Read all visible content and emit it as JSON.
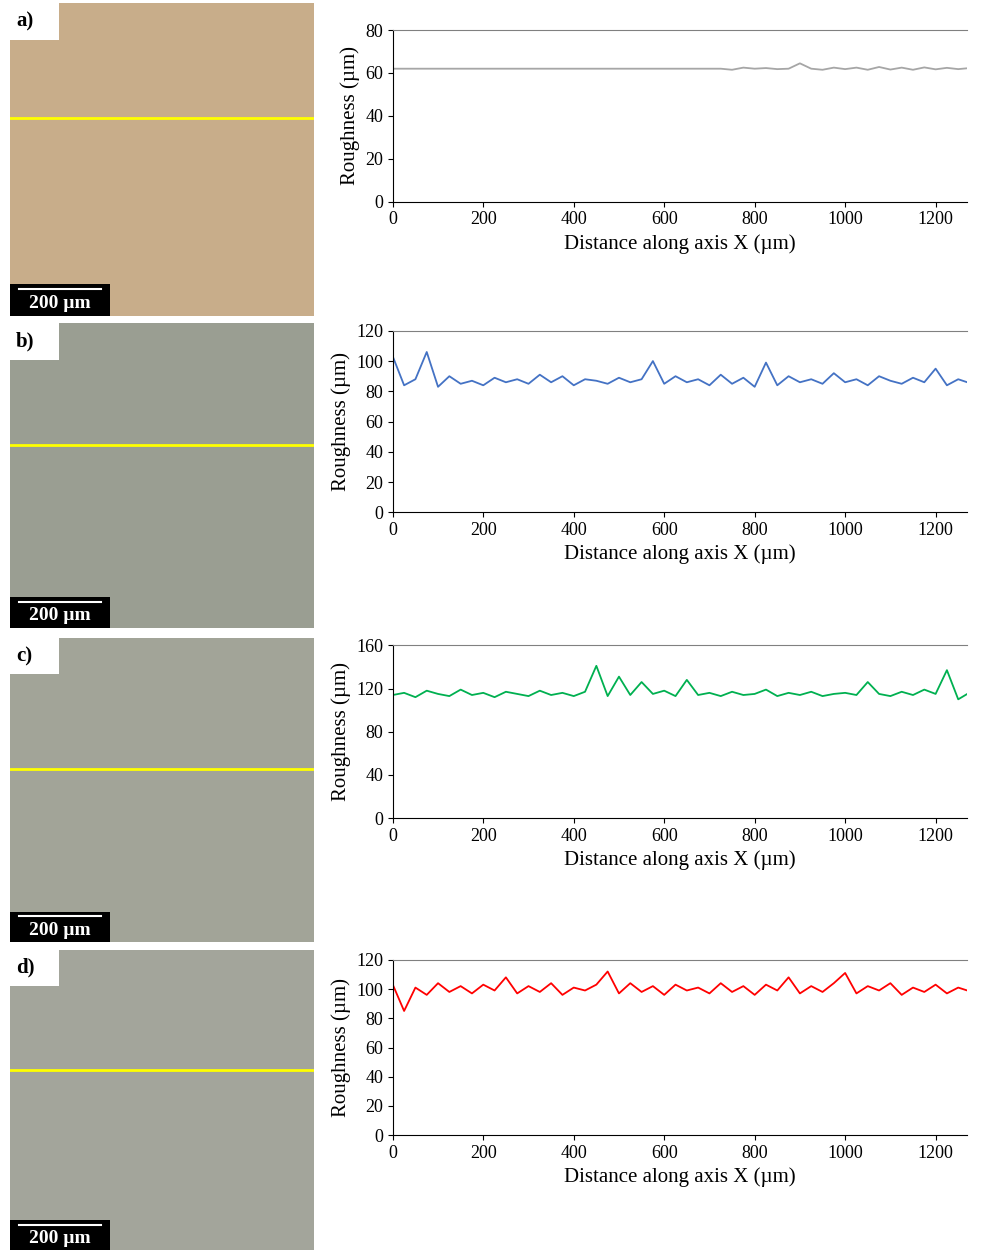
{
  "chart_data": [
    {
      "type": "line",
      "x_label": "Distance along axis X (µm)",
      "y_label": "Roughness (µm)",
      "x": [
        0,
        25,
        50,
        75,
        100,
        125,
        150,
        175,
        200,
        225,
        250,
        275,
        300,
        325,
        350,
        375,
        400,
        425,
        450,
        475,
        500,
        525,
        550,
        575,
        600,
        625,
        650,
        675,
        700,
        725,
        750,
        775,
        800,
        825,
        850,
        875,
        900,
        925,
        950,
        975,
        1000,
        1025,
        1050,
        1075,
        1100,
        1125,
        1150,
        1175,
        1200,
        1225,
        1250,
        1270
      ],
      "series": [
        {
          "name": "a)",
          "color": "#a6a6a6",
          "values": [
            62,
            62,
            62,
            62,
            62,
            62,
            62,
            62,
            62,
            62,
            62,
            62,
            62,
            62,
            62,
            62,
            62,
            62,
            62,
            62,
            62,
            62,
            62,
            62,
            62,
            62,
            62,
            62,
            62,
            62,
            61.5,
            62.5,
            62,
            62.3,
            61.8,
            62,
            64.5,
            62,
            61.5,
            62.5,
            61.8,
            62.5,
            61.5,
            62.8,
            61.6,
            62.5,
            61.5,
            62.6,
            61.7,
            62.4,
            61.8,
            62.2
          ]
        }
      ],
      "xlim": [
        0,
        1270
      ],
      "xticks": [
        0,
        200,
        400,
        600,
        800,
        1000,
        1200
      ],
      "ylim": [
        0,
        80
      ],
      "yticks": [
        0,
        20,
        40,
        60,
        80
      ],
      "grid": false
    },
    {
      "type": "line",
      "x_label": "Distance along axis X (µm)",
      "y_label": "Roughness (µm)",
      "x": [
        0,
        25,
        50,
        75,
        100,
        125,
        150,
        175,
        200,
        225,
        250,
        275,
        300,
        325,
        350,
        375,
        400,
        425,
        450,
        475,
        500,
        525,
        550,
        575,
        600,
        625,
        650,
        675,
        700,
        725,
        750,
        775,
        800,
        825,
        850,
        875,
        900,
        925,
        950,
        975,
        1000,
        1025,
        1050,
        1075,
        1100,
        1125,
        1150,
        1175,
        1200,
        1225,
        1250,
        1270
      ],
      "series": [
        {
          "name": "b)",
          "color": "#4472c4",
          "values": [
            103,
            84,
            88,
            106,
            83,
            90,
            85,
            87,
            84,
            89,
            86,
            88,
            85,
            91,
            86,
            90,
            84,
            88,
            87,
            85,
            89,
            86,
            88,
            100,
            85,
            90,
            86,
            88,
            84,
            91,
            85,
            89,
            83,
            99,
            84,
            90,
            86,
            88,
            85,
            92,
            86,
            88,
            84,
            90,
            87,
            85,
            89,
            86,
            95,
            84,
            88,
            86
          ]
        }
      ],
      "xlim": [
        0,
        1270
      ],
      "xticks": [
        0,
        200,
        400,
        600,
        800,
        1000,
        1200
      ],
      "ylim": [
        0,
        120
      ],
      "yticks": [
        0,
        20,
        40,
        60,
        80,
        100,
        120
      ],
      "grid": false
    },
    {
      "type": "line",
      "x_label": "Distance along axis X (µm)",
      "y_label": "Roughness (µm)",
      "x": [
        0,
        25,
        50,
        75,
        100,
        125,
        150,
        175,
        200,
        225,
        250,
        275,
        300,
        325,
        350,
        375,
        400,
        425,
        450,
        475,
        500,
        525,
        550,
        575,
        600,
        625,
        650,
        675,
        700,
        725,
        750,
        775,
        800,
        825,
        850,
        875,
        900,
        925,
        950,
        975,
        1000,
        1025,
        1050,
        1075,
        1100,
        1125,
        1150,
        1175,
        1200,
        1225,
        1250,
        1270
      ],
      "series": [
        {
          "name": "c)",
          "color": "#00b050",
          "values": [
            114,
            116,
            112,
            118,
            115,
            113,
            119,
            114,
            116,
            112,
            117,
            115,
            113,
            118,
            114,
            116,
            113,
            117,
            141,
            113,
            131,
            114,
            126,
            115,
            118,
            113,
            128,
            114,
            116,
            113,
            117,
            114,
            115,
            119,
            113,
            116,
            114,
            117,
            113,
            115,
            116,
            114,
            126,
            115,
            113,
            117,
            114,
            119,
            115,
            137,
            110,
            115
          ]
        }
      ],
      "xlim": [
        0,
        1270
      ],
      "xticks": [
        0,
        200,
        400,
        600,
        800,
        1000,
        1200
      ],
      "ylim": [
        0,
        160
      ],
      "yticks": [
        0,
        40,
        80,
        120,
        160
      ],
      "grid": false
    },
    {
      "type": "line",
      "x_label": "Distance along axis X (µm)",
      "y_label": "Roughness (µm)",
      "x": [
        0,
        25,
        50,
        75,
        100,
        125,
        150,
        175,
        200,
        225,
        250,
        275,
        300,
        325,
        350,
        375,
        400,
        425,
        450,
        475,
        500,
        525,
        550,
        575,
        600,
        625,
        650,
        675,
        700,
        725,
        750,
        775,
        800,
        825,
        850,
        875,
        900,
        925,
        950,
        975,
        1000,
        1025,
        1050,
        1075,
        1100,
        1125,
        1150,
        1175,
        1200,
        1225,
        1250,
        1270
      ],
      "series": [
        {
          "name": "d)",
          "color": "#ff0000",
          "values": [
            103,
            85,
            101,
            96,
            104,
            98,
            102,
            97,
            103,
            99,
            108,
            97,
            102,
            98,
            104,
            96,
            101,
            99,
            103,
            112,
            97,
            104,
            98,
            102,
            96,
            103,
            99,
            101,
            97,
            104,
            98,
            102,
            96,
            103,
            99,
            108,
            97,
            102,
            98,
            104,
            111,
            97,
            102,
            99,
            104,
            96,
            101,
            98,
            103,
            97,
            101,
            99
          ]
        }
      ],
      "xlim": [
        0,
        1270
      ],
      "xticks": [
        0,
        200,
        400,
        600,
        800,
        1000,
        1200
      ],
      "ylim": [
        0,
        120
      ],
      "yticks": [
        0,
        20,
        40,
        60,
        80,
        100,
        120
      ],
      "grid": false
    }
  ],
  "panels": [
    {
      "label": "a)",
      "scale_bar": "200 µm"
    },
    {
      "label": "b)",
      "scale_bar": "200 µm"
    },
    {
      "label": "c)",
      "scale_bar": "200 µm"
    },
    {
      "label": "d)",
      "scale_bar": "200 µm"
    }
  ]
}
